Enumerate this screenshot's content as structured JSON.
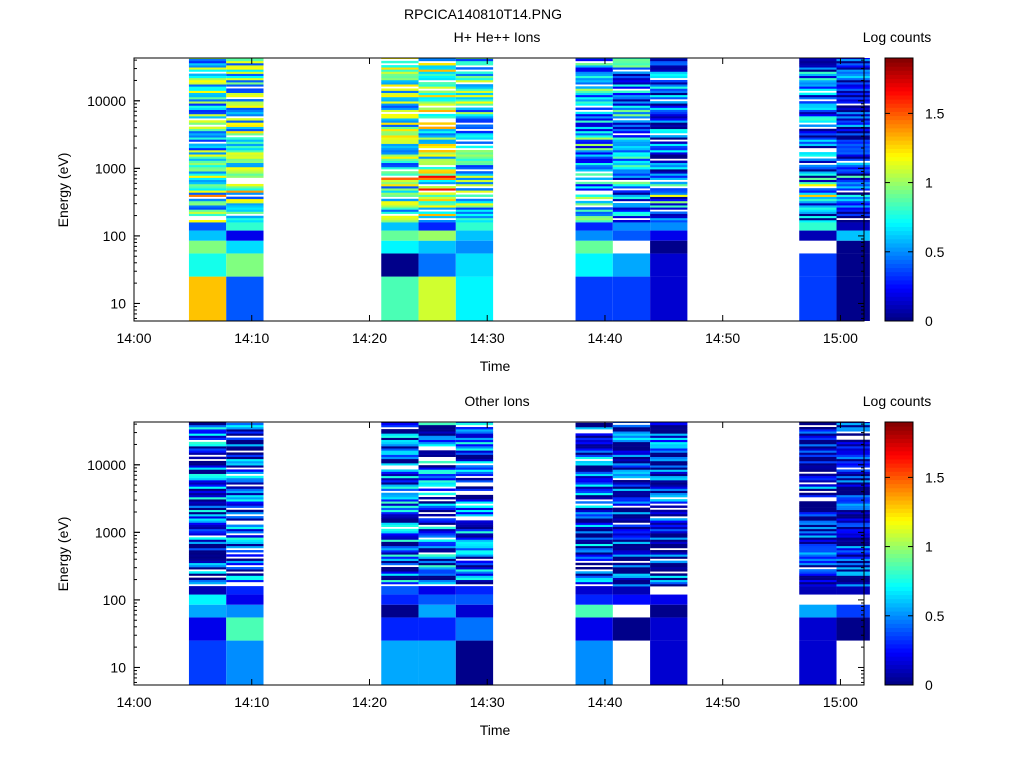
{
  "figure_title": "RPCICA140810T14.PNG",
  "colormap": "jet",
  "chart_data": [
    {
      "type": "heatmap",
      "title": "H+ He++ Ions",
      "xlabel": "Time",
      "ylabel": "Energy (eV)",
      "colorbar_label": "Log counts",
      "y_scale": "log",
      "ylim": [
        5.5,
        43000
      ],
      "xlim": [
        "14:00",
        "15:02"
      ],
      "x_ticks": [
        "14:00",
        "14:10",
        "14:20",
        "14:30",
        "14:40",
        "14:50",
        "15:00"
      ],
      "y_ticks": [
        10,
        100,
        1000,
        10000
      ],
      "clim": [
        0,
        1.9
      ],
      "colorbar_ticks": [
        0,
        0.5,
        1,
        1.5
      ],
      "columns": [
        {
          "start": "14:04:40",
          "end": "14:07:50",
          "base": 0.75,
          "low": [
            1.3,
            0.75,
            0.95,
            0.6,
            0.4
          ]
        },
        {
          "start": "14:07:50",
          "end": "14:11:00",
          "base": 0.8,
          "low": [
            0.4,
            0.95,
            0.65,
            0.2,
            0.8
          ]
        },
        {
          "start": "14:21:00",
          "end": "14:24:10",
          "base": 0.8,
          "low": [
            0.85,
            0.02,
            0.7,
            0.9,
            0.6
          ]
        },
        {
          "start": "14:24:10",
          "end": "14:27:20",
          "base": 0.9,
          "low": [
            1.1,
            0.45,
            0.6,
            1.0,
            0.3
          ]
        },
        {
          "start": "14:27:20",
          "end": "14:30:30",
          "base": 0.75,
          "low": [
            0.7,
            0.65,
            0.5,
            0.6,
            0.8
          ]
        },
        {
          "start": "14:37:30",
          "end": "14:40:40",
          "base": 0.6,
          "low": [
            0.35,
            0.7,
            0.9,
            0.5,
            0.3
          ]
        },
        {
          "start": "14:40:40",
          "end": "14:43:50",
          "base": 0.5,
          "low": [
            0.35,
            0.55,
            null,
            0.4,
            0.5
          ]
        },
        {
          "start": "14:43:50",
          "end": "14:47:00",
          "base": 0.4,
          "low": [
            0.15,
            0.15,
            0.02,
            0.2,
            0.5
          ]
        },
        {
          "start": "14:56:30",
          "end": "14:59:40",
          "base": 0.4,
          "low": [
            0.35,
            0.35,
            null,
            0.1,
            0.8
          ]
        },
        {
          "start": "14:59:40",
          "end": "15:02:30",
          "base": 0.2,
          "low": [
            0.02,
            0.02,
            0.02,
            0.6,
            0.1
          ]
        }
      ]
    },
    {
      "type": "heatmap",
      "title": "Other Ions",
      "xlabel": "Time",
      "ylabel": "Energy (eV)",
      "colorbar_label": "Log counts",
      "y_scale": "log",
      "ylim": [
        5.5,
        43000
      ],
      "xlim": [
        "14:00",
        "15:02"
      ],
      "x_ticks": [
        "14:00",
        "14:10",
        "14:20",
        "14:30",
        "14:40",
        "14:50",
        "15:00"
      ],
      "y_ticks": [
        10,
        100,
        1000,
        10000
      ],
      "clim": [
        0,
        1.9
      ],
      "colorbar_ticks": [
        0,
        0.5,
        1,
        1.5
      ],
      "columns": [
        {
          "start": "14:04:40",
          "end": "14:07:50",
          "base": 0.3,
          "low": [
            0.35,
            0.2,
            0.55,
            0.7,
            0.1
          ]
        },
        {
          "start": "14:07:50",
          "end": "14:11:00",
          "base": 0.3,
          "low": [
            0.5,
            0.85,
            0.5,
            0.2,
            0.3
          ]
        },
        {
          "start": "14:21:00",
          "end": "14:24:10",
          "base": 0.35,
          "low": [
            0.55,
            0.3,
            0.02,
            0.3,
            0.4
          ]
        },
        {
          "start": "14:24:10",
          "end": "14:27:20",
          "base": 0.35,
          "low": [
            0.55,
            0.3,
            0.55,
            0.4,
            0.2
          ]
        },
        {
          "start": "14:27:20",
          "end": "14:30:30",
          "base": 0.3,
          "low": [
            0.02,
            0.45,
            0.15,
            0.4,
            0.3
          ]
        },
        {
          "start": "14:37:30",
          "end": "14:40:40",
          "base": 0.25,
          "low": [
            0.5,
            0.2,
            0.85,
            0.3,
            0.15
          ]
        },
        {
          "start": "14:40:40",
          "end": "14:43:50",
          "base": 0.2,
          "low": [
            null,
            0.02,
            null,
            0.25,
            0.1
          ]
        },
        {
          "start": "14:43:50",
          "end": "14:47:00",
          "base": 0.2,
          "low": [
            0.15,
            0.15,
            0.02,
            0.2,
            null
          ]
        },
        {
          "start": "14:56:30",
          "end": "14:59:40",
          "base": 0.15,
          "low": [
            0.15,
            0.15,
            0.55,
            null,
            0.1
          ]
        },
        {
          "start": "14:59:40",
          "end": "15:02:30",
          "base": 0.15,
          "low": [
            null,
            0.02,
            0.35,
            null,
            0.1
          ]
        }
      ]
    }
  ]
}
